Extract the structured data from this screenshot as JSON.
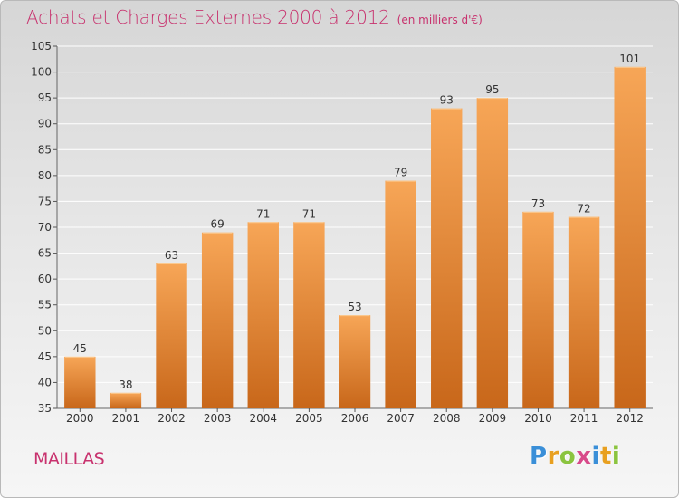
{
  "title": "Achats et Charges Externes 2000 à 2012",
  "unit_note": "(en milliers d'€)",
  "commune": "MAILLAS",
  "logo": {
    "letters": [
      "P",
      "r",
      "o",
      "x",
      "i",
      "t",
      "i"
    ],
    "colors": [
      "#3a8fd8",
      "#e8a020",
      "#8bc43f",
      "#d84a8a",
      "#3a8fd8",
      "#e8a020",
      "#8bc43f"
    ]
  },
  "colors": {
    "title": "#c8326e",
    "bar_top": "#f7a657",
    "bar_bottom": "#c8671a",
    "grid": "#ffffff"
  },
  "chart_data": {
    "type": "bar",
    "categories": [
      "2000",
      "2001",
      "2002",
      "2003",
      "2004",
      "2005",
      "2006",
      "2007",
      "2008",
      "2009",
      "2010",
      "2011",
      "2012"
    ],
    "values": [
      45,
      38,
      63,
      69,
      71,
      71,
      53,
      79,
      93,
      95,
      73,
      72,
      101
    ],
    "ylim": [
      35,
      105
    ],
    "yticks": [
      35,
      40,
      45,
      50,
      55,
      60,
      65,
      70,
      75,
      80,
      85,
      90,
      95,
      100,
      105
    ],
    "grid": true,
    "legend": "none"
  }
}
